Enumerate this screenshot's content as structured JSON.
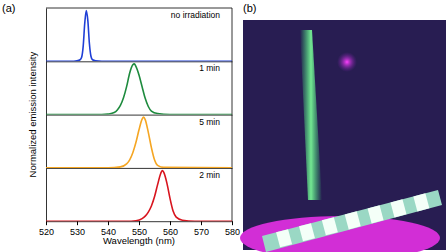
{
  "panel_labels": [
    "(a)",
    "(b)"
  ],
  "chart_data": [
    {
      "type": "line",
      "title": "no irradiation",
      "y_label": "Normalized emission intensity",
      "color": "#1f3fd6",
      "x": [
        520,
        528,
        530,
        531,
        531.5,
        532,
        532.5,
        533,
        533.5,
        534,
        534.5,
        535,
        536,
        540,
        580
      ],
      "values": [
        0,
        0,
        0.01,
        0.03,
        0.08,
        0.3,
        0.75,
        1,
        0.8,
        0.35,
        0.1,
        0.03,
        0.01,
        0,
        0
      ],
      "xlim": [
        520,
        580
      ],
      "ylim": [
        0,
        1.05
      ],
      "yticks": [],
      "tick_labels": false
    },
    {
      "type": "line",
      "title": "1 min",
      "color": "#1e8b3e",
      "x": [
        520,
        538,
        540,
        542,
        543,
        544,
        545,
        546,
        547,
        548,
        548.5,
        549,
        550,
        551,
        552,
        553,
        554,
        556,
        560,
        580
      ],
      "values": [
        0,
        0,
        0.01,
        0.04,
        0.09,
        0.18,
        0.33,
        0.55,
        0.82,
        0.98,
        1,
        0.95,
        0.78,
        0.55,
        0.32,
        0.16,
        0.07,
        0.02,
        0,
        0
      ],
      "xlim": [
        520,
        580
      ],
      "ylim": [
        0,
        1.05
      ],
      "yticks": [],
      "tick_labels": false
    },
    {
      "type": "line",
      "title": "5 min",
      "color": "#f5a623",
      "x": [
        520,
        540,
        544,
        546,
        547,
        548,
        549,
        550,
        551,
        551.5,
        552,
        553,
        554,
        555,
        556,
        558,
        580
      ],
      "values": [
        0,
        0,
        0.02,
        0.08,
        0.16,
        0.3,
        0.5,
        0.75,
        0.96,
        1,
        0.95,
        0.7,
        0.4,
        0.16,
        0.05,
        0.01,
        0
      ],
      "xlim": [
        520,
        580
      ],
      "ylim": [
        0,
        1.05
      ],
      "yticks": [],
      "tick_labels": false
    },
    {
      "type": "line",
      "title": "2 min",
      "x_label": "Wavelength (nm)",
      "color": "#d8141e",
      "x": [
        520,
        546,
        549,
        551,
        552,
        553,
        554,
        555,
        556,
        557,
        557.5,
        558,
        559,
        560,
        561,
        562,
        564,
        568,
        580
      ],
      "values": [
        0,
        0,
        0.01,
        0.05,
        0.1,
        0.18,
        0.3,
        0.48,
        0.72,
        0.94,
        1,
        0.96,
        0.75,
        0.45,
        0.2,
        0.08,
        0.02,
        0,
        0
      ],
      "xlim": [
        520,
        580
      ],
      "xticks": [
        520,
        530,
        540,
        550,
        560,
        570,
        580
      ],
      "ylim": [
        0,
        1.05
      ],
      "yticks": [],
      "tick_labels": "x"
    }
  ]
}
